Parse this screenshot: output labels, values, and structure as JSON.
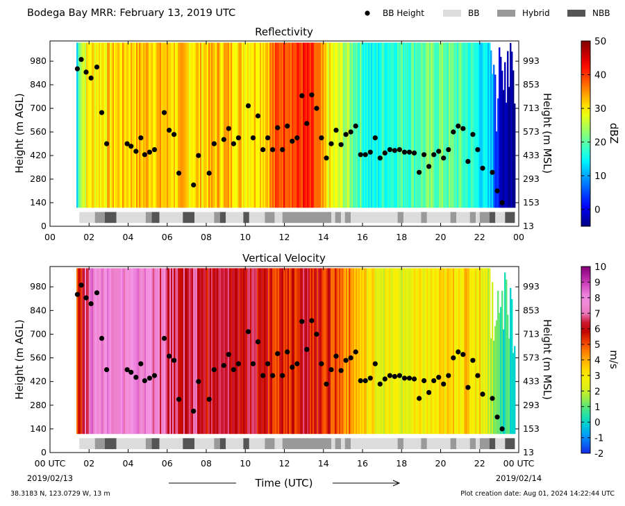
{
  "figure": {
    "title": "Bodega Bay MRR:  February 13, 2019 UTC",
    "legend": [
      {
        "label": "BB Height",
        "kind": "dot",
        "color": "#000000"
      },
      {
        "label": "BB",
        "kind": "box",
        "color": "#dcdcdc"
      },
      {
        "label": "Hybrid",
        "kind": "box",
        "color": "#999999"
      },
      {
        "label": "NBB",
        "kind": "box",
        "color": "#555555"
      }
    ],
    "location": "38.3183 N, 123.0729 W, 13 m",
    "creation_date": "Plot creation date: Aug 01, 2024 14:22:44 UTC",
    "xlabel": "Time (UTC)"
  },
  "chart_data": [
    {
      "type": "heatmap",
      "title": "Reflectivity",
      "ylabel": "Height (m AGL)",
      "y2label": "Height (m MSL)",
      "colorbar_label": "dBZ",
      "colorbar_range": [
        -5,
        50
      ],
      "colorbar_ticks": [
        "0",
        "10",
        "20",
        "30",
        "40",
        "50"
      ],
      "colorbar_tick_values": [
        0,
        10,
        20,
        30,
        40,
        50
      ],
      "colormap": "jet",
      "xlim": [
        0,
        24
      ],
      "ylim": [
        0,
        1100
      ],
      "xticks": [
        "00",
        "02",
        "04",
        "06",
        "08",
        "10",
        "12",
        "14",
        "16",
        "18",
        "20",
        "22",
        "00"
      ],
      "yticks": [
        "0",
        "140",
        "280",
        "420",
        "560",
        "700",
        "840",
        "980"
      ],
      "y2ticks": [
        "13",
        "153",
        "293",
        "433",
        "573",
        "713",
        "853",
        "993"
      ],
      "data_window": {
        "t_start": 1.35,
        "t_end": 23.8,
        "h_start": 110,
        "h_end": 1090
      },
      "profile": [
        [
          1.35,
          12
        ],
        [
          1.5,
          26
        ],
        [
          2.0,
          30
        ],
        [
          3.0,
          31
        ],
        [
          4.0,
          32
        ],
        [
          5.0,
          33
        ],
        [
          6.0,
          32
        ],
        [
          7.0,
          31
        ],
        [
          8.0,
          32
        ],
        [
          9.0,
          33
        ],
        [
          10.0,
          31
        ],
        [
          11.0,
          33
        ],
        [
          11.6,
          38
        ],
        [
          12.0,
          41
        ],
        [
          12.5,
          39
        ],
        [
          13.0,
          41
        ],
        [
          13.5,
          38
        ],
        [
          14.0,
          31
        ],
        [
          14.5,
          27
        ],
        [
          15.0,
          25
        ],
        [
          16.0,
          18
        ],
        [
          16.5,
          14
        ],
        [
          17.0,
          17
        ],
        [
          18.0,
          19
        ],
        [
          19.0,
          20
        ],
        [
          20.0,
          21
        ],
        [
          21.0,
          19
        ],
        [
          22.0,
          15
        ],
        [
          22.7,
          9
        ],
        [
          23.0,
          -2
        ],
        [
          23.8,
          -4
        ]
      ],
      "bb_height": [
        [
          1.4,
          935
        ],
        [
          1.6,
          990
        ],
        [
          1.85,
          915
        ],
        [
          2.1,
          880
        ],
        [
          2.4,
          945
        ],
        [
          2.65,
          675
        ],
        [
          2.9,
          490
        ],
        [
          3.95,
          490
        ],
        [
          4.15,
          475
        ],
        [
          4.4,
          445
        ],
        [
          4.65,
          525
        ],
        [
          4.85,
          425
        ],
        [
          5.1,
          440
        ],
        [
          5.35,
          455
        ],
        [
          5.85,
          675
        ],
        [
          6.1,
          570
        ],
        [
          6.35,
          545
        ],
        [
          6.6,
          315
        ],
        [
          7.35,
          245
        ],
        [
          7.6,
          420
        ],
        [
          8.15,
          315
        ],
        [
          8.4,
          490
        ],
        [
          8.9,
          515
        ],
        [
          9.15,
          580
        ],
        [
          9.4,
          490
        ],
        [
          9.65,
          525
        ],
        [
          10.15,
          715
        ],
        [
          10.4,
          525
        ],
        [
          10.65,
          655
        ],
        [
          10.9,
          455
        ],
        [
          11.15,
          525
        ],
        [
          11.4,
          455
        ],
        [
          11.65,
          585
        ],
        [
          11.9,
          455
        ],
        [
          12.15,
          595
        ],
        [
          12.4,
          505
        ],
        [
          12.65,
          525
        ],
        [
          12.9,
          775
        ],
        [
          13.15,
          610
        ],
        [
          13.4,
          780
        ],
        [
          13.65,
          700
        ],
        [
          13.9,
          525
        ],
        [
          14.15,
          405
        ],
        [
          14.4,
          490
        ],
        [
          14.65,
          570
        ],
        [
          14.9,
          485
        ],
        [
          15.15,
          545
        ],
        [
          15.4,
          560
        ],
        [
          15.65,
          595
        ],
        [
          15.9,
          425
        ],
        [
          16.15,
          425
        ],
        [
          16.4,
          440
        ],
        [
          16.65,
          525
        ],
        [
          16.9,
          405
        ],
        [
          17.15,
          435
        ],
        [
          17.4,
          455
        ],
        [
          17.65,
          450
        ],
        [
          17.9,
          455
        ],
        [
          18.15,
          440
        ],
        [
          18.4,
          440
        ],
        [
          18.65,
          435
        ],
        [
          18.9,
          320
        ],
        [
          19.15,
          425
        ],
        [
          19.4,
          355
        ],
        [
          19.65,
          425
        ],
        [
          19.9,
          445
        ],
        [
          20.15,
          405
        ],
        [
          20.4,
          455
        ],
        [
          20.65,
          560
        ],
        [
          20.9,
          595
        ],
        [
          21.15,
          580
        ],
        [
          21.4,
          385
        ],
        [
          21.65,
          545
        ],
        [
          21.9,
          455
        ],
        [
          22.15,
          345
        ],
        [
          22.65,
          320
        ],
        [
          22.9,
          210
        ],
        [
          23.15,
          140
        ]
      ],
      "bb_class": [
        {
          "t0": 1.5,
          "t1": 2.3,
          "c": "BB"
        },
        {
          "t0": 2.3,
          "t1": 2.8,
          "c": "Hybrid"
        },
        {
          "t0": 2.8,
          "t1": 3.4,
          "c": "NBB"
        },
        {
          "t0": 3.4,
          "t1": 4.9,
          "c": "BB"
        },
        {
          "t0": 4.9,
          "t1": 5.2,
          "c": "Hybrid"
        },
        {
          "t0": 5.2,
          "t1": 5.6,
          "c": "NBB"
        },
        {
          "t0": 5.6,
          "t1": 6.8,
          "c": "BB"
        },
        {
          "t0": 6.8,
          "t1": 7.4,
          "c": "NBB"
        },
        {
          "t0": 7.4,
          "t1": 8.4,
          "c": "BB"
        },
        {
          "t0": 8.4,
          "t1": 8.7,
          "c": "Hybrid"
        },
        {
          "t0": 8.7,
          "t1": 9.0,
          "c": "NBB"
        },
        {
          "t0": 9.0,
          "t1": 9.9,
          "c": "BB"
        },
        {
          "t0": 9.9,
          "t1": 10.2,
          "c": "NBB"
        },
        {
          "t0": 10.2,
          "t1": 11.0,
          "c": "BB"
        },
        {
          "t0": 11.0,
          "t1": 11.5,
          "c": "Hybrid"
        },
        {
          "t0": 11.5,
          "t1": 11.9,
          "c": "BB"
        },
        {
          "t0": 11.9,
          "t1": 14.4,
          "c": "Hybrid"
        },
        {
          "t0": 14.4,
          "t1": 14.6,
          "c": "BB"
        },
        {
          "t0": 14.6,
          "t1": 14.9,
          "c": "Hybrid"
        },
        {
          "t0": 14.9,
          "t1": 15.1,
          "c": "BB"
        },
        {
          "t0": 15.1,
          "t1": 15.4,
          "c": "Hybrid"
        },
        {
          "t0": 15.4,
          "t1": 17.8,
          "c": "BB"
        },
        {
          "t0": 17.8,
          "t1": 18.1,
          "c": "Hybrid"
        },
        {
          "t0": 18.1,
          "t1": 19.0,
          "c": "BB"
        },
        {
          "t0": 19.0,
          "t1": 19.3,
          "c": "Hybrid"
        },
        {
          "t0": 19.3,
          "t1": 20.5,
          "c": "BB"
        },
        {
          "t0": 20.5,
          "t1": 20.8,
          "c": "Hybrid"
        },
        {
          "t0": 20.8,
          "t1": 21.5,
          "c": "BB"
        },
        {
          "t0": 21.5,
          "t1": 21.8,
          "c": "Hybrid"
        },
        {
          "t0": 21.8,
          "t1": 22.0,
          "c": "BB"
        },
        {
          "t0": 22.0,
          "t1": 22.5,
          "c": "Hybrid"
        },
        {
          "t0": 22.5,
          "t1": 22.8,
          "c": "NBB"
        },
        {
          "t0": 22.8,
          "t1": 23.3,
          "c": "BB"
        },
        {
          "t0": 23.3,
          "t1": 23.8,
          "c": "NBB"
        }
      ]
    },
    {
      "type": "heatmap",
      "title": "Vertical Velocity",
      "ylabel": "Height (m AGL)",
      "y2label": "Height (m MSL)",
      "colorbar_label": "m/s",
      "colorbar_range": [
        -2,
        10
      ],
      "colorbar_ticks": [
        "-2",
        "-1",
        "0",
        "1",
        "2",
        "3",
        "4",
        "5",
        "6",
        "7",
        "8",
        "9",
        "10"
      ],
      "colorbar_tick_values": [
        -2,
        -1,
        0,
        1,
        2,
        3,
        4,
        5,
        6,
        7,
        8,
        9,
        10
      ],
      "colormap": "velocity",
      "xlim": [
        0,
        24
      ],
      "ylim": [
        0,
        1100
      ],
      "xticks": [
        "00 UTC",
        "02",
        "04",
        "06",
        "08",
        "10",
        "12",
        "14",
        "16",
        "18",
        "20",
        "22",
        "00 UTC"
      ],
      "xtick_dates": [
        "2019/02/13",
        "",
        "",
        "",
        "",
        "",
        "",
        "",
        "",
        "",
        "",
        "",
        "2019/02/14"
      ],
      "yticks": [
        "0",
        "140",
        "280",
        "420",
        "560",
        "700",
        "840",
        "980"
      ],
      "y2ticks": [
        "13",
        "153",
        "293",
        "433",
        "573",
        "713",
        "853",
        "993"
      ],
      "data_window": {
        "t_start": 1.35,
        "t_end": 23.8,
        "h_start": 110,
        "h_end": 1090
      },
      "profile": [
        [
          1.35,
          5.5
        ],
        [
          1.6,
          6.0
        ],
        [
          2.0,
          7.8
        ],
        [
          3.0,
          8.0
        ],
        [
          4.0,
          7.6
        ],
        [
          5.0,
          7.9
        ],
        [
          6.0,
          6.6
        ],
        [
          7.0,
          6.3
        ],
        [
          8.0,
          6.1
        ],
        [
          9.0,
          6.2
        ],
        [
          10.0,
          6.0
        ],
        [
          11.0,
          5.8
        ],
        [
          12.0,
          5.7
        ],
        [
          13.0,
          6.0
        ],
        [
          14.0,
          5.6
        ],
        [
          14.5,
          5.2
        ],
        [
          15.0,
          4.7
        ],
        [
          16.0,
          3.3
        ],
        [
          17.0,
          2.6
        ],
        [
          18.0,
          2.4
        ],
        [
          19.0,
          2.7
        ],
        [
          20.0,
          3.0
        ],
        [
          21.0,
          3.4
        ],
        [
          22.0,
          3.1
        ],
        [
          22.5,
          2.2
        ],
        [
          23.0,
          0.6
        ],
        [
          23.8,
          0.2
        ]
      ],
      "bb_height": "same-as-reflectivity",
      "bb_class": "same-as-reflectivity"
    }
  ]
}
